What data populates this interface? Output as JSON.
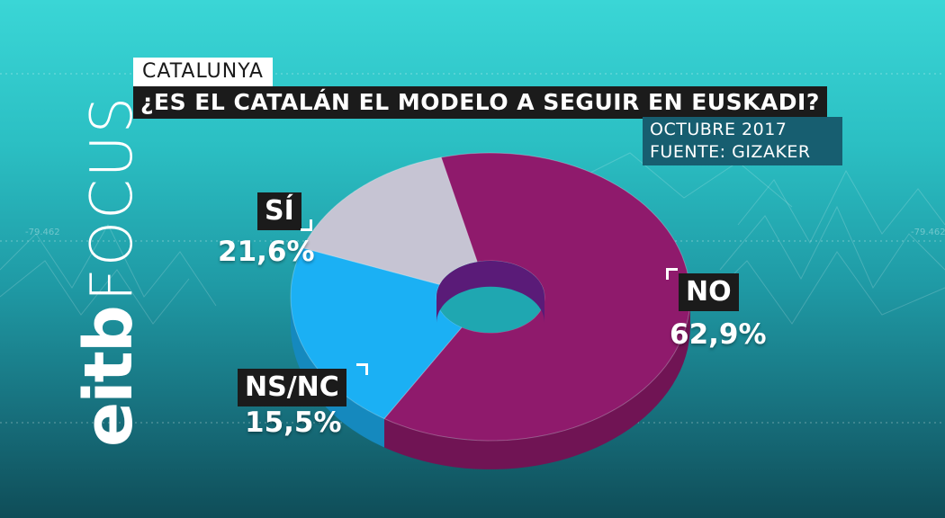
{
  "header": {
    "region": "CATALUNYA",
    "question": "¿ES EL CATALÁN EL MODELO A SEGUIR EN EUSKADI?",
    "date": "OCTUBRE 2017",
    "source": "FUENTE: GIZAKER"
  },
  "logo": {
    "eitb": "eitb",
    "focus": "FOCUS"
  },
  "colors": {
    "no": "#8f1a6c",
    "si": "#1bb0f4",
    "nsnc": "#c6c4d3"
  },
  "chart_data": {
    "type": "pie",
    "title": "¿ES EL CATALÁN EL MODELO A SEGUIR EN EUSKADI?",
    "categories": [
      "NO",
      "SÍ",
      "NS/NC"
    ],
    "values": [
      62.9,
      21.6,
      15.5
    ],
    "value_labels": [
      "62,9%",
      "21,6%",
      "15,5%"
    ],
    "unit": "%"
  }
}
